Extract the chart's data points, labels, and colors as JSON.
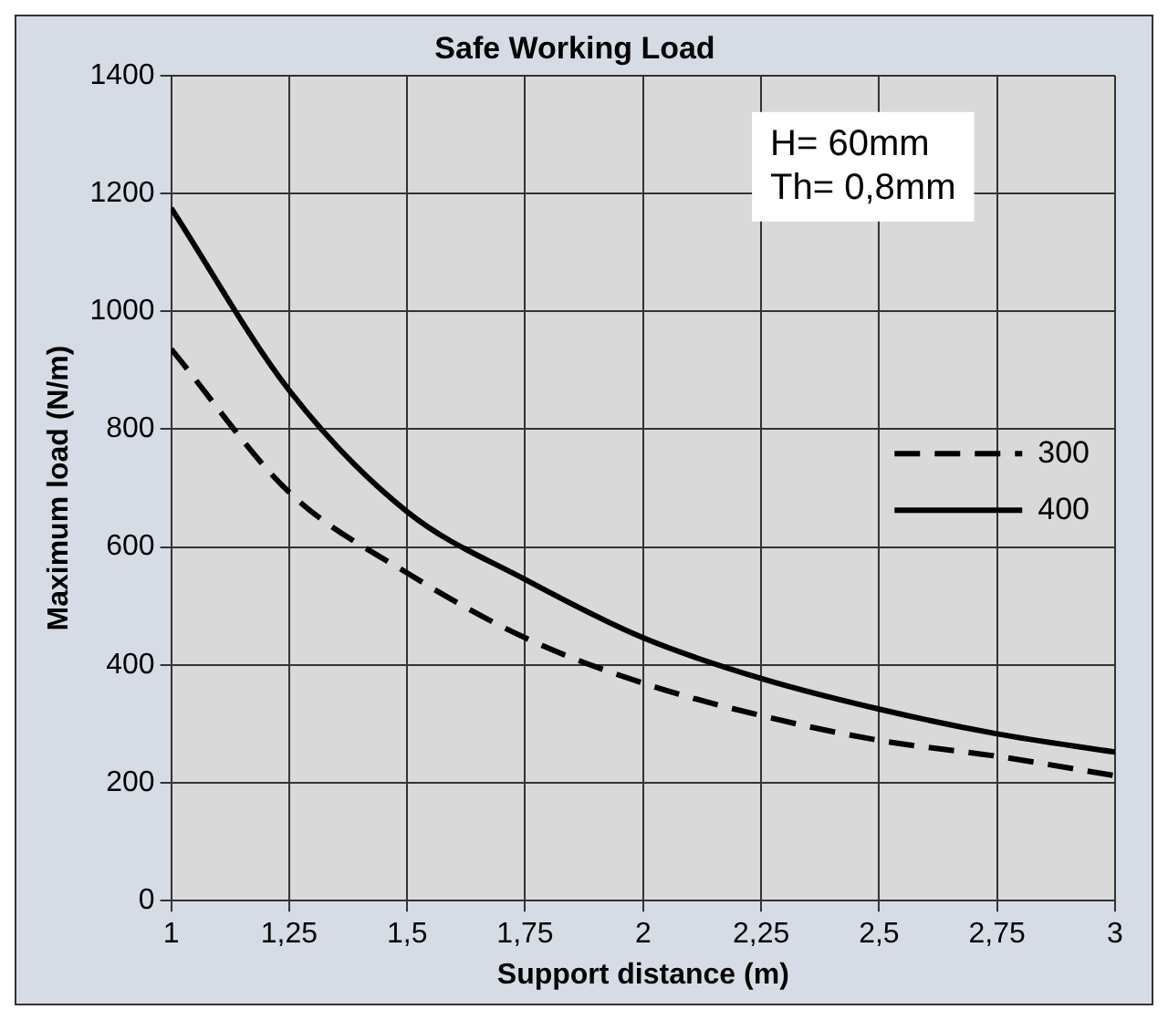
{
  "chart_data": {
    "type": "line",
    "title": "Safe Working Load",
    "xlabel": "Support distance (m)",
    "ylabel": "Maximum load (N/m)",
    "x": [
      1,
      1.25,
      1.5,
      1.75,
      2,
      2.25,
      2.5,
      2.75,
      3
    ],
    "series": [
      {
        "name": "300",
        "color": "#000000",
        "line_style": "dashed",
        "values": [
          936,
          693,
          556,
          446,
          369,
          314,
          272,
          245,
          212
        ]
      },
      {
        "name": "400",
        "color": "#000000",
        "line_style": "solid",
        "values": [
          1175,
          866,
          660,
          545,
          446,
          377,
          325,
          283,
          252
        ]
      }
    ],
    "xlim": [
      1,
      3
    ],
    "xticks": [
      1,
      {
        "value": 1.25,
        "label": "1,25"
      },
      {
        "value": 1.5,
        "label": "1,5"
      },
      {
        "value": 1.75,
        "label": "1,75"
      },
      2,
      {
        "value": 2.25,
        "label": "2,25"
      },
      {
        "value": 2.5,
        "label": "2,5"
      },
      {
        "value": 2.75,
        "label": "2,75"
      },
      3
    ],
    "ylim": [
      0,
      1400
    ],
    "yticks": [
      0,
      200,
      400,
      600,
      800,
      1000,
      1200,
      1400
    ],
    "grid": true,
    "legend": "right",
    "marker": "none",
    "annotations": [
      "H= 60mm",
      "Th= 0,8mm"
    ]
  }
}
